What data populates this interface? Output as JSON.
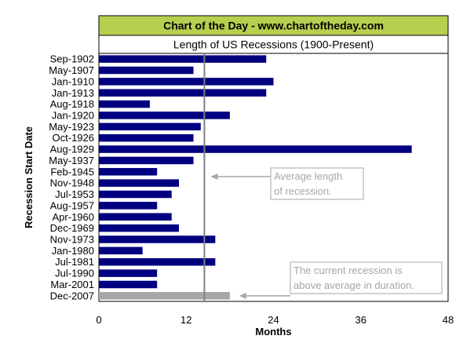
{
  "header": {
    "banner": "Chart of the Day - www.chartoftheday.com",
    "subtitle": "Length of US Recessions (1900-Present)"
  },
  "chart_data": {
    "type": "bar",
    "orientation": "horizontal",
    "title": "Length of US Recessions (1900-Present)",
    "xlabel": "Months",
    "ylabel": "Recession Start Date",
    "xlim": [
      0,
      48
    ],
    "xticks": [
      "0",
      "12",
      "24",
      "36",
      "48"
    ],
    "categories": [
      "Sep-1902",
      "May-1907",
      "Jan-1910",
      "Jan-1913",
      "Aug-1918",
      "Jan-1920",
      "May-1923",
      "Oct-1926",
      "Aug-1929",
      "May-1937",
      "Feb-1945",
      "Nov-1948",
      "Jul-1953",
      "Aug-1957",
      "Apr-1960",
      "Dec-1969",
      "Nov-1973",
      "Jan-1980",
      "Jul-1981",
      "Jul-1990",
      "Mar-2001",
      "Dec-2007"
    ],
    "values": [
      23,
      13,
      24,
      23,
      7,
      18,
      14,
      13,
      43,
      13,
      8,
      11,
      10,
      8,
      10,
      11,
      16,
      6,
      16,
      8,
      8,
      18
    ],
    "average": 14.5,
    "colors": {
      "bar": "#000080",
      "current_bar": "#a6a6a6",
      "average_line": "#808080",
      "banner_bg": "#b7cf4f",
      "annotation": "#a6a6a6"
    },
    "highlight_category": "Dec-2007",
    "grid": false,
    "annotations": [
      {
        "id": "average",
        "lines": [
          "Average length",
          "of recession."
        ]
      },
      {
        "id": "current",
        "lines": [
          "The current recession is",
          "above average in duration."
        ]
      }
    ]
  }
}
